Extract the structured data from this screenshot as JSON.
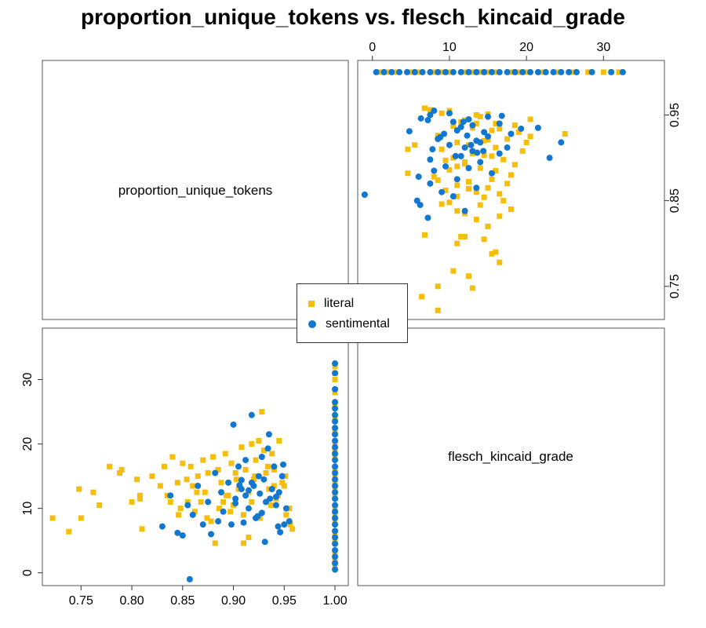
{
  "title": "proportion_unique_tokens vs. flesch_kincaid_grade",
  "legend": {
    "items": [
      {
        "label": "literal",
        "color": "#F5BE0B",
        "shape": "square"
      },
      {
        "label": "sentimental",
        "color": "#1177D1",
        "shape": "circle"
      }
    ]
  },
  "chart_data": {
    "type": "scatter",
    "title": "proportion_unique_tokens vs. flesch_kincaid_grade",
    "variables": [
      "proportion_unique_tokens",
      "flesch_kincaid_grade"
    ],
    "axes": {
      "proportion_unique_tokens": {
        "range": [
          0.715,
          1.01
        ],
        "ticks": [
          0.75,
          0.8,
          0.85,
          0.9,
          0.95,
          1.0
        ],
        "tick_labels": [
          "0.75",
          "0.80",
          "0.85",
          "0.90",
          "0.95",
          "1.00"
        ],
        "right_ticks": [
          0.75,
          0.85,
          0.95
        ],
        "right_tick_labels": [
          "0.75",
          "0.85",
          "0.95"
        ]
      },
      "flesch_kincaid_grade": {
        "range": [
          -1.5,
          37.5
        ],
        "ticks": [
          0,
          10,
          20,
          30
        ],
        "tick_labels": [
          "0",
          "10",
          "20",
          "30"
        ]
      }
    },
    "grid": false,
    "legend_position": "center",
    "series": [
      {
        "name": "literal",
        "color": "#F5BE0B",
        "marker": "square",
        "x": [
          0.722,
          0.738,
          0.748,
          0.75,
          0.762,
          0.768,
          0.778,
          0.788,
          0.79,
          0.8,
          0.805,
          0.808,
          0.81,
          0.808,
          0.82,
          0.828,
          0.832,
          0.835,
          0.84,
          0.845,
          0.848,
          0.85,
          0.855,
          0.858,
          0.86,
          0.862,
          0.865,
          0.868,
          0.87,
          0.872,
          0.875,
          0.878,
          0.88,
          0.882,
          0.885,
          0.888,
          0.89,
          0.892,
          0.895,
          0.898,
          0.9,
          0.902,
          0.905,
          0.908,
          0.91,
          0.912,
          0.915,
          0.918,
          0.92,
          0.922,
          0.925,
          0.928,
          0.93,
          0.932,
          0.935,
          0.938,
          0.94,
          0.942,
          0.945,
          0.948,
          0.95,
          0.952,
          0.955,
          0.958,
          0.893,
          0.897,
          0.903,
          0.918,
          0.926,
          0.934,
          0.94,
          0.944,
          0.951,
          0.956,
          0.886,
          0.874,
          0.864,
          0.854,
          0.846,
          0.838,
          0.915,
          0.921,
          0.937,
          0.91,
          1.0,
          1.0,
          1.0,
          1.0,
          1.0,
          1.0,
          1.0,
          1.0,
          1.0,
          1.0,
          1.0,
          1.0,
          1.0,
          1.0,
          1.0,
          1.0,
          1.0,
          1.0,
          1.0,
          1.0,
          1.0,
          1.0,
          1.0
        ],
        "y": [
          8.5,
          6.4,
          13.0,
          8.5,
          12.5,
          10.5,
          16.5,
          15.5,
          16.0,
          11.0,
          14.5,
          12.0,
          6.8,
          11.5,
          15.0,
          13.5,
          16.5,
          12.0,
          18.0,
          14.0,
          10.0,
          17.0,
          11.0,
          16.5,
          13.5,
          9.5,
          15.0,
          11.0,
          17.5,
          12.5,
          15.5,
          8.0,
          18.0,
          4.6,
          16.0,
          14.0,
          11.0,
          18.5,
          12.0,
          17.0,
          10.5,
          15.5,
          13.0,
          19.5,
          9.0,
          16.0,
          12.5,
          20.0,
          14.5,
          17.5,
          20.5,
          25.0,
          19.0,
          15.5,
          13.0,
          18.5,
          16.0,
          11.5,
          20.5,
          14.0,
          13.5,
          9.0,
          10.0,
          6.8,
          12.0,
          9.5,
          14.5,
          11.0,
          8.5,
          16.5,
          13.5,
          12.0,
          15.0,
          7.5,
          10.0,
          8.5,
          12.5,
          14.5,
          9.0,
          11.0,
          5.5,
          15.0,
          10.5,
          4.6,
          1.0,
          3.0,
          5.0,
          8.0,
          10.0,
          12.0,
          14.0,
          16.0,
          18.0,
          20.0,
          22.0,
          24.0,
          26.0,
          28.0,
          30.0,
          31.0,
          32.0,
          2.0,
          6.0,
          9.0,
          13.0,
          15.0,
          19.0
        ]
      },
      {
        "name": "sentimental",
        "color": "#1177D1",
        "marker": "circle",
        "x": [
          0.83,
          0.838,
          0.845,
          0.85,
          0.855,
          0.857,
          0.86,
          0.865,
          0.87,
          0.875,
          0.878,
          0.882,
          0.885,
          0.888,
          0.89,
          0.895,
          0.898,
          0.9,
          0.902,
          0.905,
          0.908,
          0.91,
          0.912,
          0.915,
          0.918,
          0.92,
          0.922,
          0.925,
          0.928,
          0.93,
          0.932,
          0.935,
          0.938,
          0.94,
          0.942,
          0.945,
          0.948,
          0.95,
          0.952,
          0.955,
          0.912,
          0.902,
          0.926,
          0.936,
          0.944,
          0.918,
          0.906,
          0.931,
          0.942,
          0.949,
          0.924,
          0.934,
          0.915,
          0.908,
          0.928,
          0.946,
          1.0,
          1.0,
          1.0,
          1.0,
          1.0,
          1.0,
          1.0,
          1.0,
          1.0,
          1.0,
          1.0,
          1.0,
          1.0,
          1.0,
          1.0,
          1.0,
          1.0,
          1.0,
          1.0,
          1.0,
          1.0,
          1.0,
          1.0,
          1.0,
          1.0,
          1.0,
          1.0,
          1.0,
          1.0,
          1.0
        ],
        "y": [
          7.2,
          12.0,
          6.2,
          5.8,
          10.5,
          -1.0,
          9.0,
          13.5,
          7.5,
          11.0,
          6.0,
          15.5,
          8.0,
          12.5,
          9.5,
          14.0,
          7.5,
          23.0,
          11.5,
          16.5,
          13.0,
          7.8,
          12.0,
          10.0,
          24.5,
          13.5,
          8.5,
          15.0,
          18.0,
          14.5,
          11.0,
          21.5,
          13.0,
          16.5,
          10.5,
          12.5,
          15.0,
          7.5,
          10.0,
          8.0,
          17.5,
          10.8,
          12.3,
          11.5,
          7.2,
          14.0,
          13.6,
          4.8,
          11.8,
          16.8,
          8.8,
          19.3,
          12.8,
          14.4,
          9.3,
          6.3,
          0.5,
          1.5,
          2.5,
          3.5,
          4.5,
          5.5,
          6.5,
          7.5,
          8.5,
          9.5,
          10.5,
          11.5,
          12.5,
          13.5,
          14.5,
          15.5,
          16.5,
          17.5,
          18.5,
          19.5,
          20.5,
          21.5,
          22.5,
          23.5,
          24.5,
          25.5,
          26.5,
          28.5,
          31.0,
          32.5
        ]
      }
    ]
  }
}
